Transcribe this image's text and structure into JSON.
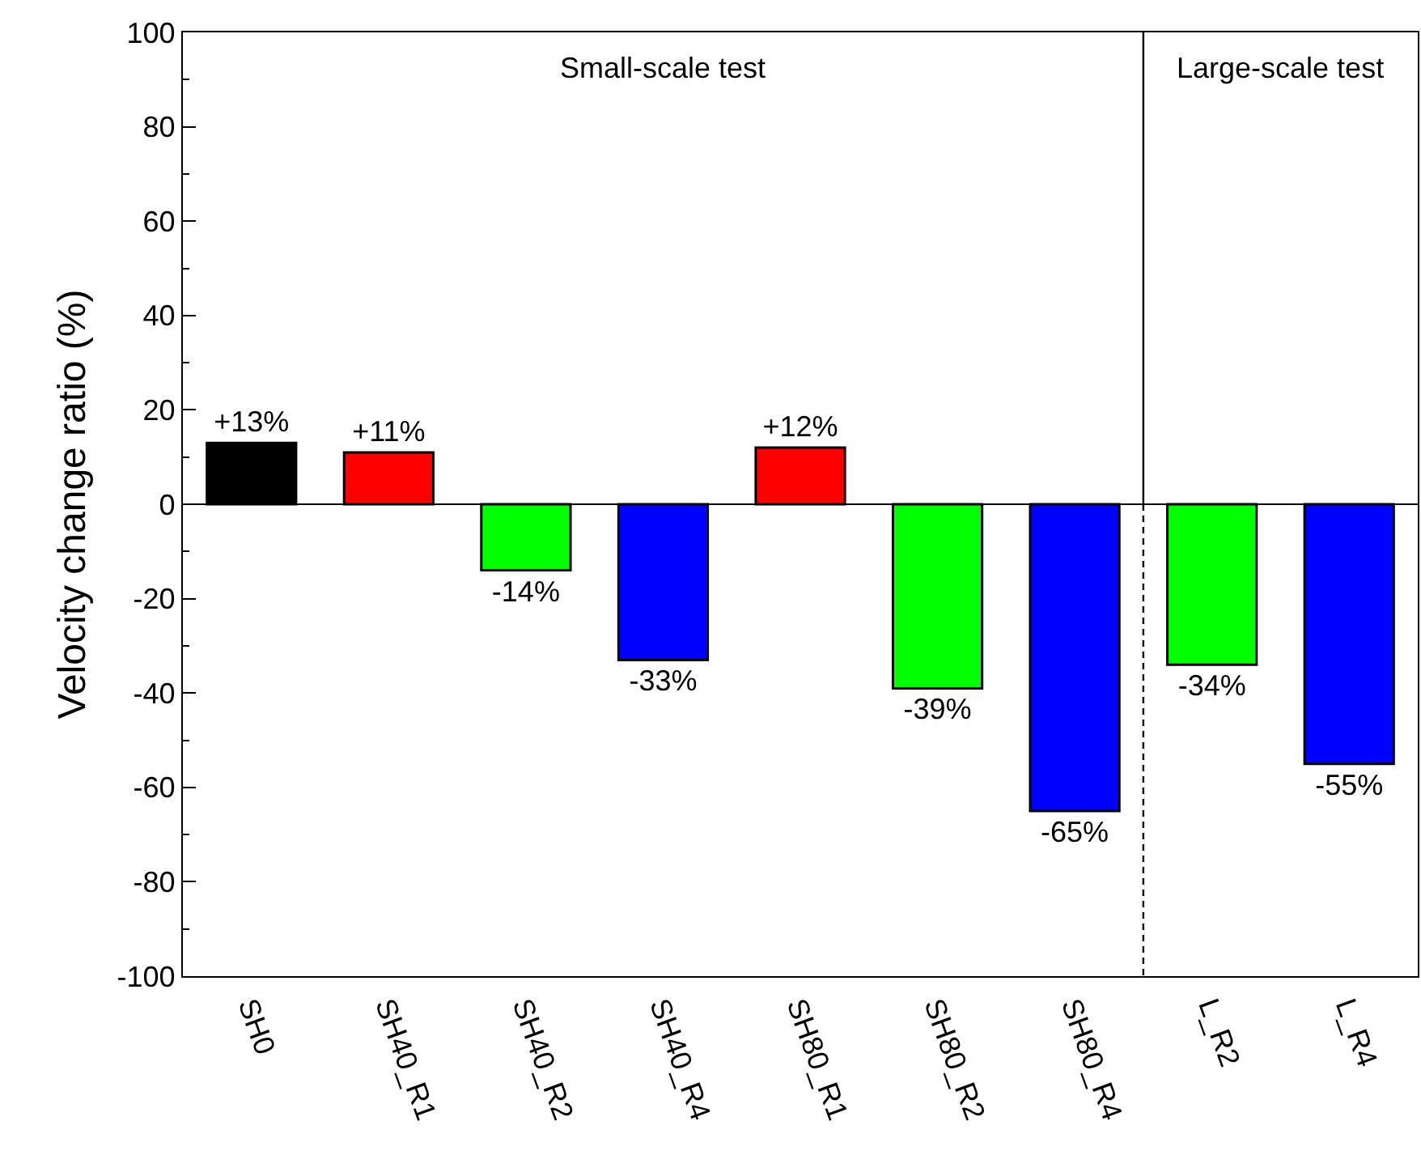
{
  "chart_data": {
    "type": "bar",
    "ylabel": "Velocity change ratio (%)",
    "categories": [
      "SH0",
      "SH40_R1",
      "SH40_R2",
      "SH40_R4",
      "SH80_R1",
      "SH80_R2",
      "SH80_R4",
      "L_R2",
      "L_R4"
    ],
    "values": [
      13,
      11,
      -14,
      -33,
      12,
      -39,
      -65,
      -34,
      -55
    ],
    "colors": [
      "#000000",
      "#ff0000",
      "#00ff00",
      "#0000ff",
      "#ff0000",
      "#00ff00",
      "#0000ff",
      "#00ff00",
      "#0000ff"
    ],
    "value_labels": [
      "+13%",
      "+11%",
      "-14%",
      "-33%",
      "+12%",
      "-39%",
      "-65%",
      "-34%",
      "-55%"
    ],
    "ylim": [
      -100,
      100
    ],
    "yticks": [
      -100,
      -80,
      -60,
      -40,
      -20,
      0,
      20,
      40,
      60,
      80,
      100
    ],
    "annotations": [
      "Small-scale test",
      "Large-scale test"
    ]
  }
}
